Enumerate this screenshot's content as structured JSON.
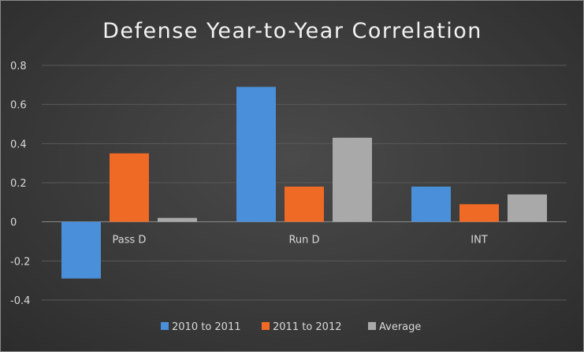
{
  "chart_data": {
    "type": "bar",
    "title": "Defense Year-to-Year Correlation",
    "categories": [
      "Pass D",
      "Run D",
      "INT"
    ],
    "series": [
      {
        "name": "2010 to 2011",
        "color": "#4a8fd9",
        "values": [
          -0.29,
          0.69,
          0.18
        ]
      },
      {
        "name": "2011 to 2012",
        "color": "#ee6a25",
        "values": [
          0.35,
          0.18,
          0.09
        ]
      },
      {
        "name": "Average",
        "color": "#a9a9a9",
        "values": [
          0.02,
          0.43,
          0.14
        ]
      }
    ],
    "yticks": [
      "0.8",
      "0.6",
      "0.4",
      "0.2",
      "0",
      "-0.2",
      "-0.4"
    ],
    "ylim": [
      -0.4,
      0.8
    ],
    "grid": true,
    "legend": "bottom"
  }
}
